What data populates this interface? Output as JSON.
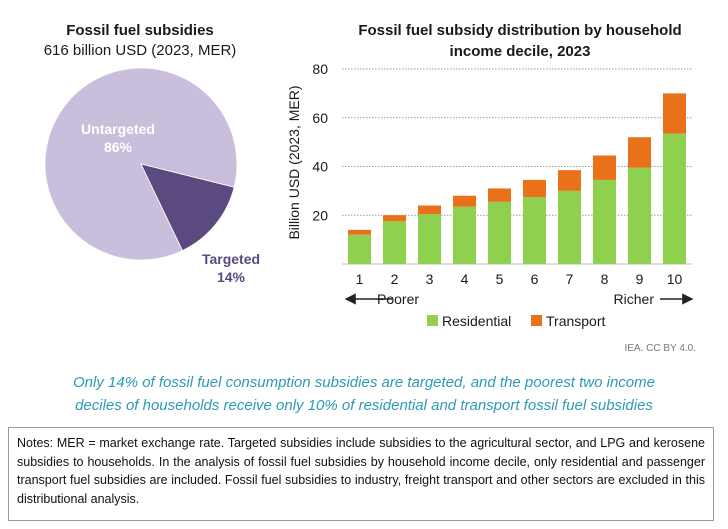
{
  "pie_panel": {
    "title": "Fossil fuel subsidies",
    "subtitle": "616 billion USD (2023, MER)"
  },
  "bar_panel": {
    "title_line1": "Fossil fuel subsidy distribution by household",
    "title_line2": "income decile, 2023",
    "poorer_label": "Poorer",
    "richer_label": "Richer"
  },
  "colors": {
    "untargeted": "#c9bedc",
    "targeted": "#5b4a80",
    "residential": "#8fd14f",
    "transport": "#e8711a",
    "gridline": "#9a9a9a",
    "caption": "#2e9ab5"
  },
  "chart_data": [
    {
      "type": "pie",
      "title": "Fossil fuel subsidies",
      "subtitle": "616 billion USD (2023, MER)",
      "slices": [
        {
          "label": "Untargeted",
          "value": 86,
          "value_label": "86%",
          "color": "#c9bedc"
        },
        {
          "label": "Targeted",
          "value": 14,
          "value_label": "14%",
          "color": "#5b4a80"
        }
      ]
    },
    {
      "type": "bar",
      "stacked": true,
      "title": "Fossil fuel subsidy distribution by household income decile, 2023",
      "ylabel": "Billion USD (2023, MER)",
      "xlabel": "",
      "ylim": [
        0,
        80
      ],
      "yticks": [
        20,
        40,
        60,
        80
      ],
      "grid": true,
      "legend": "bottom",
      "categories": [
        "1",
        "2",
        "3",
        "4",
        "5",
        "6",
        "7",
        "8",
        "9",
        "10"
      ],
      "series": [
        {
          "name": "Residential",
          "color": "#8fd14f",
          "values": [
            12,
            17.5,
            20.5,
            23.5,
            25.5,
            27.5,
            30,
            34.5,
            39.5,
            53.5
          ]
        },
        {
          "name": "Transport",
          "color": "#e8711a",
          "values": [
            2,
            2.5,
            3.5,
            4.5,
            5.5,
            7,
            8.5,
            10,
            12.5,
            16.5
          ]
        }
      ]
    }
  ],
  "credit": "IEA. CC BY 4.0.",
  "caption_line1": "Only 14% of fossil fuel consumption subsidies are targeted, and the poorest two income",
  "caption_line2": "deciles of households receive only 10% of residential and transport fossil fuel subsidies",
  "notes": "Notes: MER = market exchange rate. Targeted subsidies include subsidies to the agricultural sector, and LPG and kerosene subsidies to households. In the analysis of fossil fuel subsidies by household income decile, only residential and passenger transport fuel subsidies are included. Fossil fuel subsidies to industry, freight transport and other sectors are excluded in this distributional analysis."
}
